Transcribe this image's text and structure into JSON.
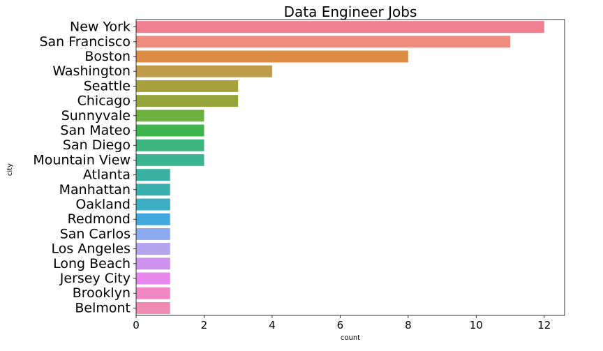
{
  "chart_data": {
    "type": "bar",
    "orientation": "horizontal",
    "title": "Data Engineer Jobs",
    "xlabel": "count",
    "ylabel": "city",
    "xlim": [
      0,
      12.6
    ],
    "xticks": [
      0,
      2,
      4,
      6,
      8,
      10,
      12
    ],
    "grid": false,
    "legend": "none",
    "categories": [
      "New York",
      "San Francisco",
      "Boston",
      "Washington",
      "Seattle",
      "Chicago",
      "Sunnyvale",
      "San Mateo",
      "San Diego",
      "Mountain View",
      "Atlanta",
      "Manhattan",
      "Oakland",
      "Redmond",
      "San Carlos",
      "Los Angeles",
      "Long Beach",
      "Jersey City",
      "Brooklyn",
      "Belmont"
    ],
    "values": [
      12,
      11,
      8,
      4,
      3,
      3,
      2,
      2,
      2,
      2,
      1,
      1,
      1,
      1,
      1,
      1,
      1,
      1,
      1,
      1
    ],
    "colors": [
      "#f0808f",
      "#ee8c7e",
      "#dd8c46",
      "#c09c4a",
      "#a7a13b",
      "#95a53c",
      "#6fb13e",
      "#3eb54f",
      "#3db57e",
      "#3cb593",
      "#3cb0a3",
      "#3ab1ae",
      "#3bafc1",
      "#41a8dd",
      "#8ca8ee",
      "#b3a4ee",
      "#cd92ef",
      "#e786ec",
      "#ee87c4",
      "#ef8ab3"
    ]
  }
}
